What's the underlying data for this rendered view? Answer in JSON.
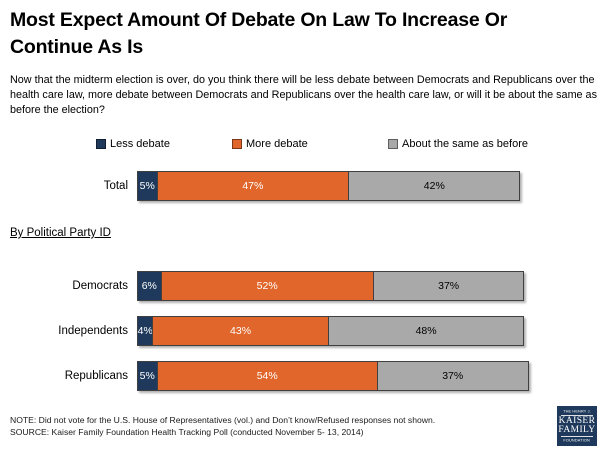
{
  "title": "Most Expect Amount Of Debate On Law To Increase Or Continue As Is",
  "question": "Now that the midterm election is over, do you think there will be less debate between Democrats and Republicans over the health care law, more debate between Democrats and Republicans over the health care law, or will it be about the same as before the election?",
  "section_label": "By Political Party ID",
  "legend": [
    {
      "label": "Less debate",
      "color": "#1E395B"
    },
    {
      "label": "More debate",
      "color": "#E0662B"
    },
    {
      "label": "About the same as before",
      "color": "#A9A9A9"
    }
  ],
  "chart_data": {
    "type": "bar",
    "orientation": "horizontal",
    "stacked": true,
    "unit": "%",
    "categories": [
      "Total",
      "Democrats",
      "Independents",
      "Republicans"
    ],
    "series": [
      {
        "name": "Less debate",
        "color": "#1E395B",
        "label_color": "#FFFFFF",
        "values": [
          5,
          6,
          4,
          5
        ]
      },
      {
        "name": "More debate",
        "color": "#E0662B",
        "label_color": "#FFFFFF",
        "values": [
          47,
          52,
          43,
          54
        ]
      },
      {
        "name": "About the same as before",
        "color": "#A9A9A9",
        "label_color": "#000000",
        "values": [
          42,
          37,
          48,
          37
        ]
      }
    ],
    "xlim": [
      0,
      100
    ],
    "legend_position": "top",
    "value_labels": "inside",
    "grid": false
  },
  "note": "NOTE: Did not vote for the U.S. House of Representatives (vol.) and Don’t know/Refused responses not shown.",
  "source": "SOURCE: Kaiser Family Foundation Health Tracking Poll (conducted November 5- 13, 2014)",
  "logo": {
    "color": "#1E395B",
    "lines": [
      "THE HENRY J.",
      "KAISER",
      "FAMILY",
      "FOUNDATION"
    ]
  }
}
